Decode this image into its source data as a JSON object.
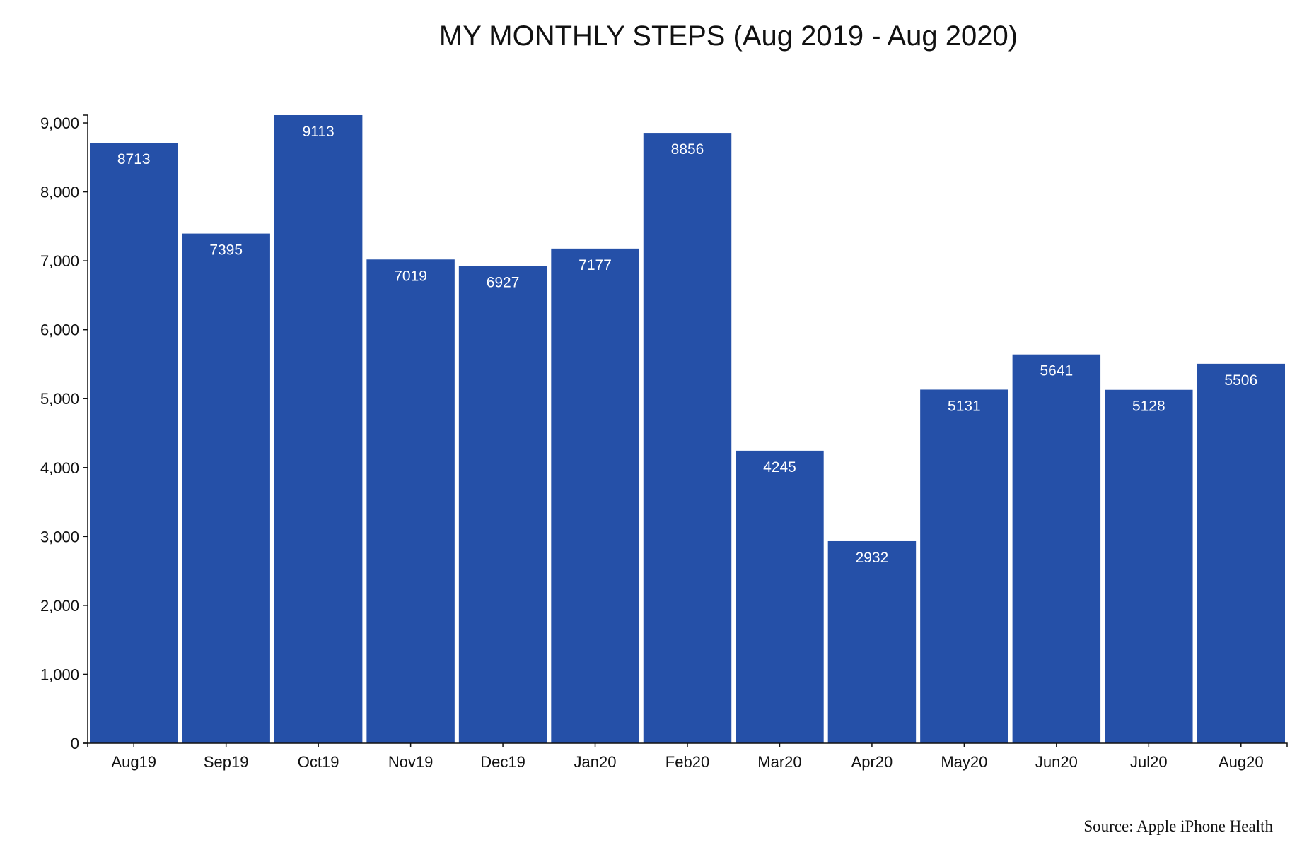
{
  "chart_data": {
    "type": "bar",
    "title": "MY MONTHLY STEPS (Aug 2019 - Aug 2020)",
    "xlabel": "",
    "ylabel": "",
    "categories": [
      "Aug19",
      "Sep19",
      "Oct19",
      "Nov19",
      "Dec19",
      "Jan20",
      "Feb20",
      "Mar20",
      "Apr20",
      "May20",
      "Jun20",
      "Jul20",
      "Aug20"
    ],
    "values": [
      8713,
      7395,
      9113,
      7019,
      6927,
      7177,
      8856,
      4245,
      2932,
      5131,
      5641,
      5128,
      5506
    ],
    "value_labels": [
      "8713",
      "7395",
      "9113",
      "7019",
      "6927",
      "7177",
      "8856",
      "4245",
      "2932",
      "5131",
      "5641",
      "5128",
      "5506"
    ],
    "ylim": [
      0,
      9113
    ],
    "y_ticks": [
      0,
      1000,
      2000,
      3000,
      4000,
      5000,
      6000,
      7000,
      8000,
      9000
    ],
    "y_tick_labels": [
      "0",
      "1,000",
      "2,000",
      "3,000",
      "4,000",
      "5,000",
      "6,000",
      "7,000",
      "8,000",
      "9,000"
    ],
    "bar_color": "#2550a8",
    "grid": false,
    "legend": "none",
    "source_note": "Source: Apple iPhone Health"
  }
}
